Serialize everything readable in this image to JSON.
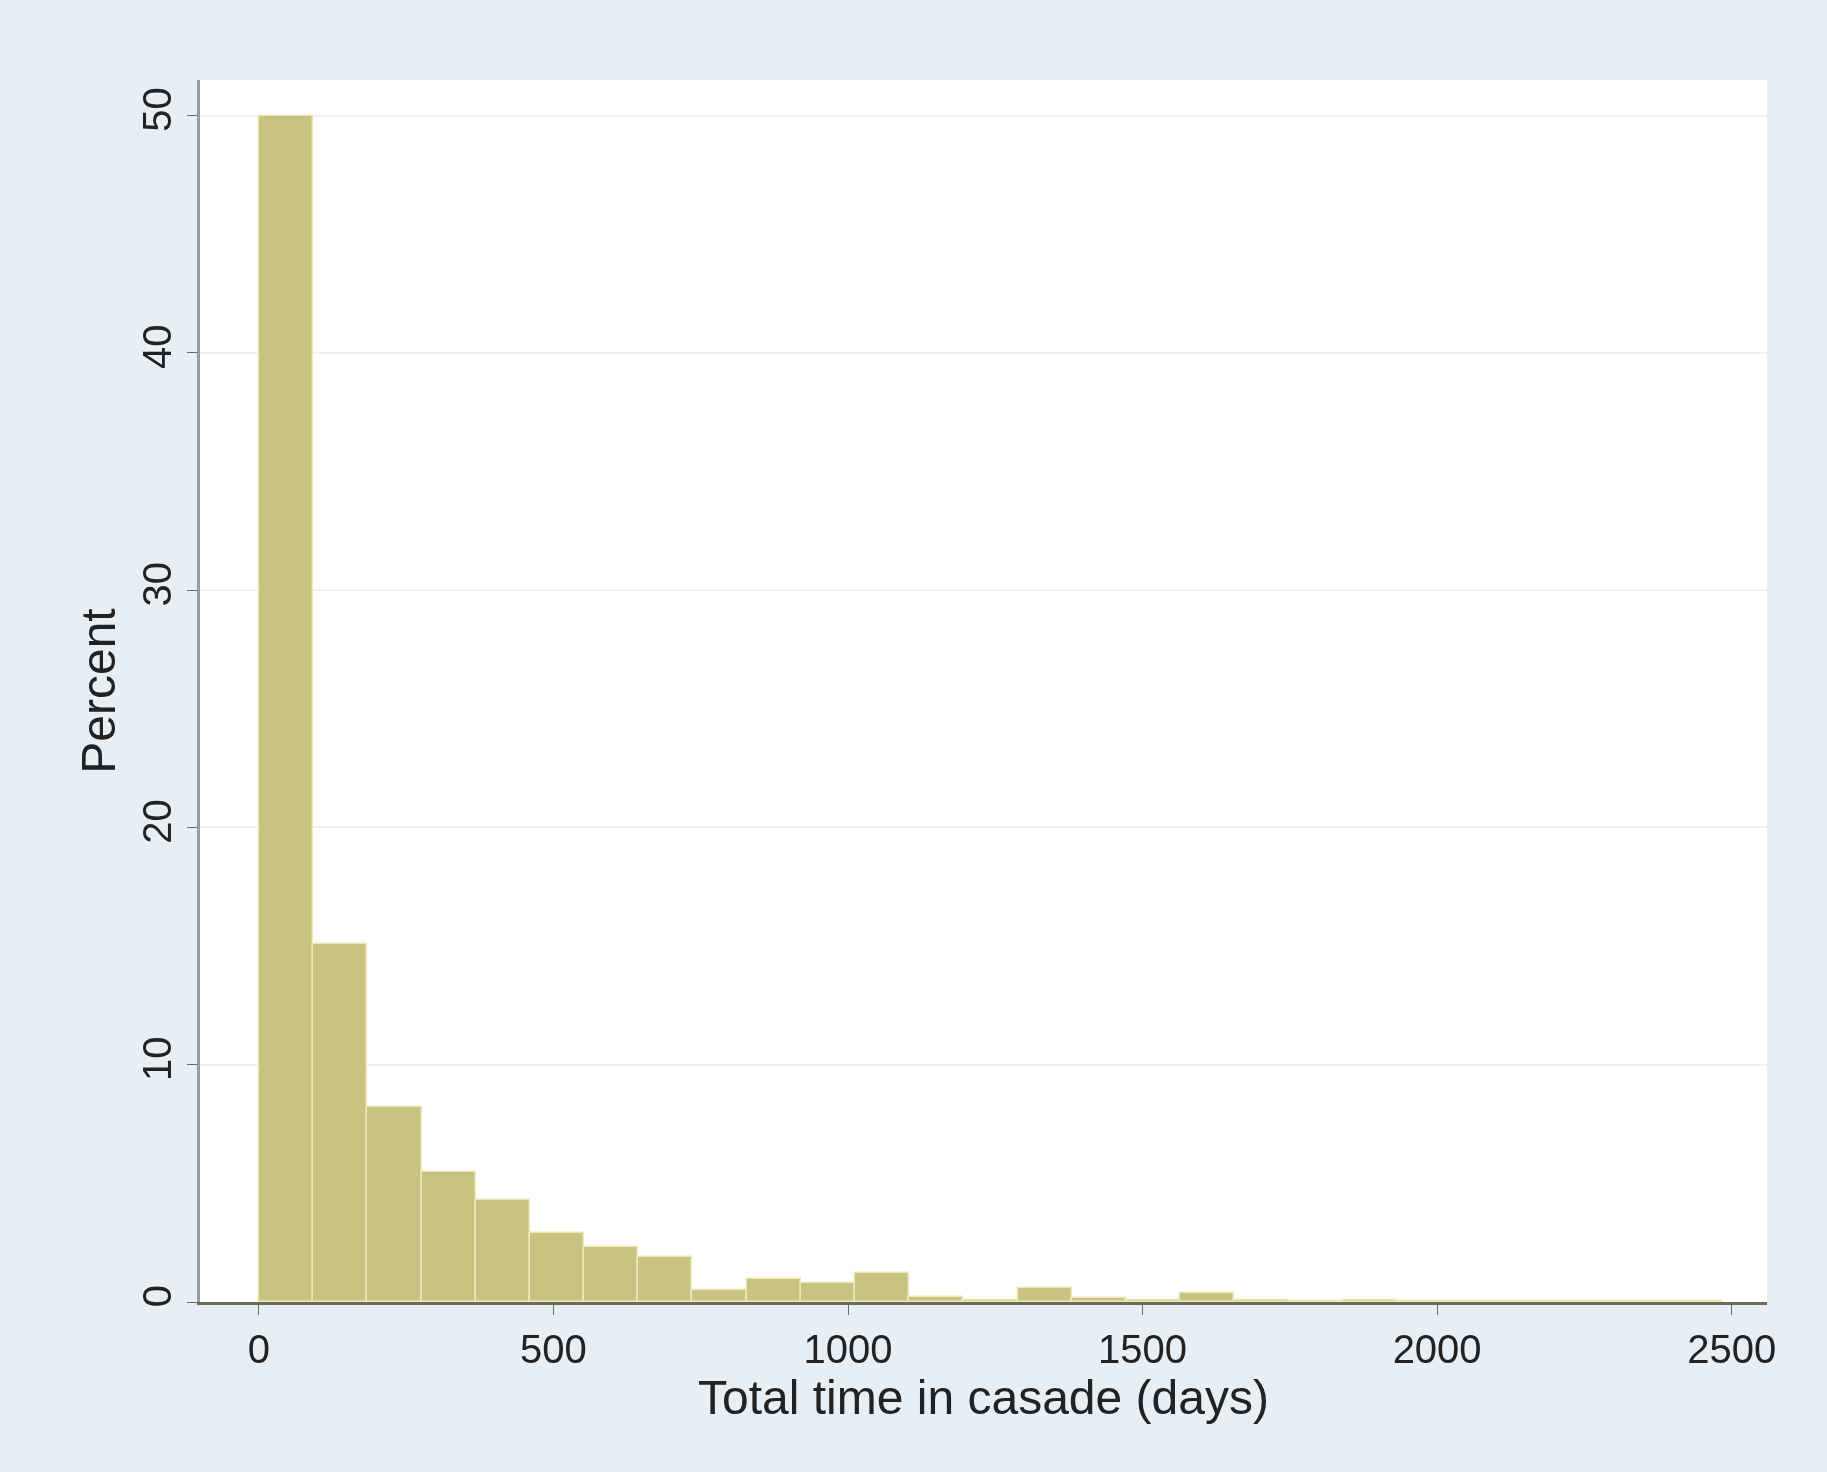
{
  "chart_data": {
    "type": "histogram",
    "xlabel": "Total time in casade (days)",
    "ylabel": "Percent",
    "bins": [
      0,
      92,
      184,
      276,
      368,
      460,
      552,
      644,
      736,
      828,
      920,
      1012,
      1104,
      1196,
      1288,
      1380,
      1472,
      1564,
      1656,
      1748,
      1840,
      1932,
      2024,
      2116,
      2208,
      2300,
      2392,
      2484
    ],
    "values": [
      50.0,
      15.1,
      8.2,
      5.5,
      4.3,
      2.9,
      2.3,
      1.9,
      0.5,
      0.95,
      0.8,
      1.23,
      0.2,
      0.1,
      0.6,
      0.15,
      0.1,
      0.4,
      0.1,
      0.05,
      0.1,
      0.05,
      0.05,
      0.05,
      0.05,
      0.05,
      0.05
    ],
    "color": "#c8c380",
    "xlim": [
      -100,
      2560
    ],
    "xticks": [
      0,
      500,
      1000,
      1500,
      2000,
      2500
    ],
    "ylim": [
      0,
      51.5
    ],
    "yticks": [
      0,
      10,
      20,
      30,
      40,
      50
    ],
    "grid": "y"
  }
}
